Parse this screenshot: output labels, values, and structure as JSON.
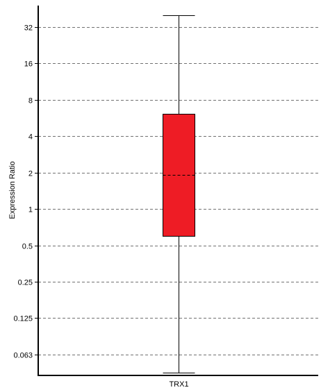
{
  "chart_data": {
    "type": "box",
    "scale": "log2",
    "ylabel": "Expression Ratio",
    "yticks": [
      {
        "value": 0.0625,
        "label": "0.063"
      },
      {
        "value": 0.125,
        "label": "0.125"
      },
      {
        "value": 0.25,
        "label": "0.25"
      },
      {
        "value": 0.5,
        "label": "0.5"
      },
      {
        "value": 1,
        "label": "1"
      },
      {
        "value": 2,
        "label": "2"
      },
      {
        "value": 4,
        "label": "4"
      },
      {
        "value": 8,
        "label": "8"
      },
      {
        "value": 16,
        "label": "16"
      },
      {
        "value": 32,
        "label": "32"
      }
    ],
    "ylim": [
      0.042,
      48
    ],
    "grid": true,
    "categories": [
      "TRX1"
    ],
    "boxes": [
      {
        "category": "TRX1",
        "min": 0.044,
        "q1": 0.6,
        "median": 1.9,
        "q3": 6.1,
        "max": 40,
        "color": "#ee1c25"
      }
    ]
  }
}
